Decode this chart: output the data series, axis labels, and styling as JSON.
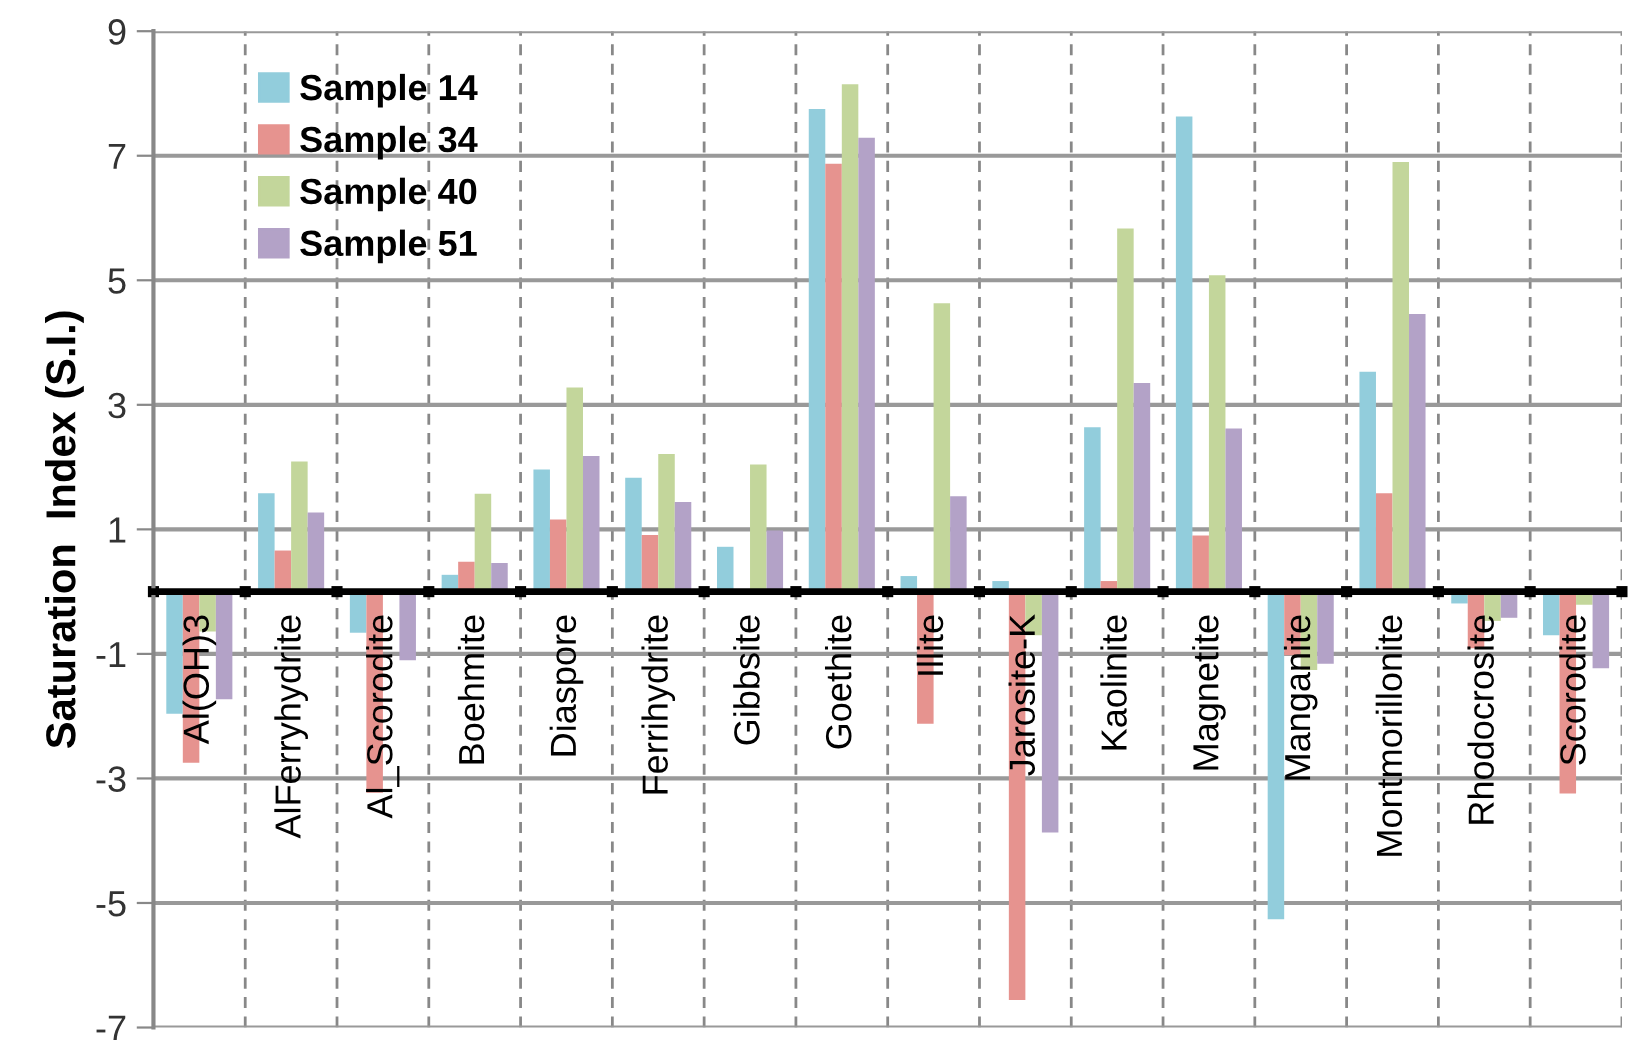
{
  "chart_data": {
    "type": "bar",
    "ylabel": "Saturation  Index (S.I.)",
    "categories": [
      "Al(OH)3",
      "AlFerryhydrite",
      "Al_Scorodite",
      "Boehmite",
      "Diaspore",
      "Ferrihydrite",
      "Gibbsite",
      "Goethite",
      "Illite",
      "Jarosite-K",
      "Kaolinite",
      "Magnetite",
      "Manganite",
      "Montmorillonite",
      "Rhodocrosite",
      "Scorodite"
    ],
    "series": [
      {
        "name": "Sample 14",
        "color": "#92cddc",
        "values": [
          -1.96,
          1.58,
          -0.66,
          0.27,
          1.96,
          1.83,
          0.72,
          7.75,
          0.25,
          0.17,
          2.64,
          7.63,
          -5.26,
          3.53,
          -0.19,
          -0.7
        ]
      },
      {
        "name": "Sample 34",
        "color": "#e6938f",
        "values": [
          -2.75,
          0.66,
          -3.23,
          0.48,
          1.16,
          0.91,
          null,
          6.87,
          -2.12,
          -6.56,
          0.17,
          0.9,
          -1.02,
          1.58,
          -0.91,
          -3.24
        ]
      },
      {
        "name": "Sample 40",
        "color": "#c3d69b",
        "values": [
          -0.64,
          2.09,
          null,
          1.57,
          3.28,
          2.21,
          2.04,
          8.15,
          4.63,
          -0.7,
          5.83,
          5.08,
          -1.26,
          6.9,
          -0.47,
          -0.21
        ]
      },
      {
        "name": "Sample 51",
        "color": "#b3a2c7",
        "values": [
          -1.73,
          1.27,
          -1.1,
          0.46,
          2.18,
          1.44,
          0.98,
          7.29,
          1.53,
          -3.87,
          3.35,
          2.62,
          -1.16,
          4.46,
          -0.42,
          -1.23
        ]
      }
    ],
    "ylim": [
      -7,
      9
    ],
    "yticks": [
      -7,
      -5,
      -3,
      -1,
      1,
      3,
      5,
      7,
      9
    ],
    "grid": true,
    "legend": "top left"
  }
}
